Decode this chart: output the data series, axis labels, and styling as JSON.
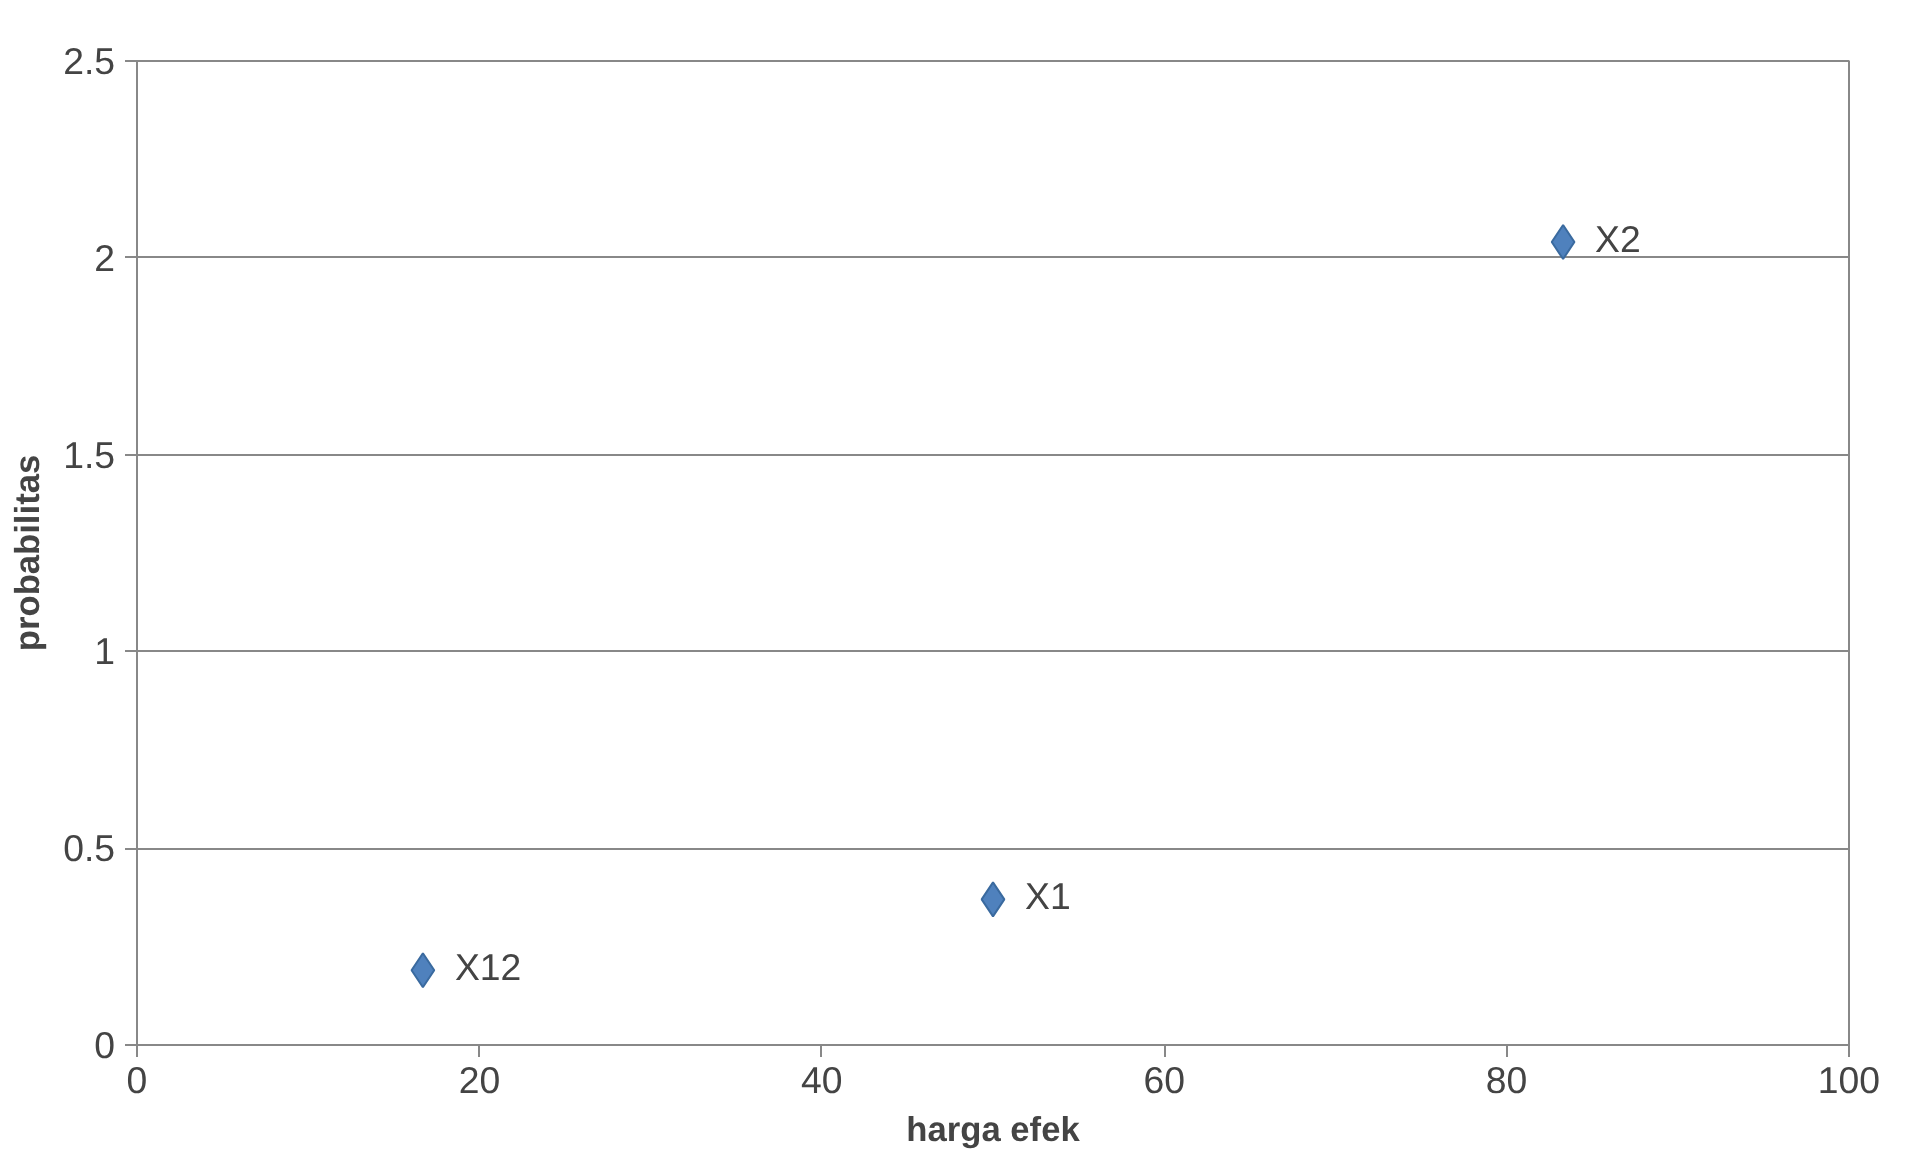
{
  "chart_data": {
    "type": "scatter",
    "xlabel": "harga efek",
    "ylabel": "probabilitas",
    "x": [
      16.7,
      50,
      83.3
    ],
    "series": [
      {
        "color": "#4f81bd",
        "values": [
          0.19,
          0.37,
          2.04
        ]
      }
    ],
    "xlim": [
      0,
      100
    ],
    "xticks": [
      0,
      20,
      40,
      60,
      80,
      100
    ],
    "ylim": [
      0,
      2.5
    ],
    "yticks": [
      0,
      0.5,
      1,
      1.5,
      2,
      2.5
    ],
    "grid": "y",
    "marker": "diamond",
    "annotations": [
      {
        "text": "X12",
        "x": 16.7,
        "y": 0.19
      },
      {
        "text": "X1",
        "x": 50,
        "y": 0.37
      },
      {
        "text": "X2",
        "x": 83.3,
        "y": 2.04
      }
    ]
  }
}
